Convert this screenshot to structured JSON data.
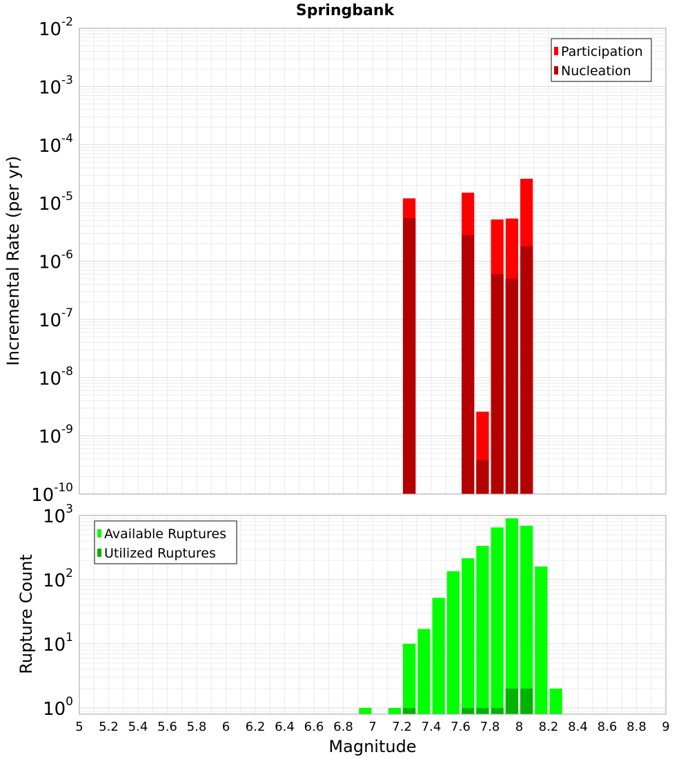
{
  "chart_data": [
    {
      "type": "bar",
      "title": "Springbank",
      "xlabel": "",
      "ylabel": "Incremental Rate (per yr)",
      "yscale": "log",
      "ylim": [
        1e-10,
        0.01
      ],
      "xlim": [
        5,
        9
      ],
      "ytick_base": "10",
      "yticks": [
        {
          "exp": "-2",
          "value": 0.01
        },
        {
          "exp": "-3",
          "value": 0.001
        },
        {
          "exp": "-4",
          "value": 0.0001
        },
        {
          "exp": "-5",
          "value": 1e-05
        },
        {
          "exp": "-6",
          "value": 1e-06
        },
        {
          "exp": "-7",
          "value": 1e-07
        },
        {
          "exp": "-8",
          "value": 1e-08
        },
        {
          "exp": "-9",
          "value": 1e-09
        },
        {
          "exp": "-10",
          "value": 1e-10
        }
      ],
      "legend_position": "top-right",
      "bin_width": 0.1,
      "x": [
        7.25,
        7.65,
        7.75,
        7.85,
        7.95,
        8.05
      ],
      "series": [
        {
          "name": "Participation",
          "color": "#ff0000",
          "values": [
            1.2e-05,
            1.5e-05,
            2.6e-09,
            5.2e-06,
            5.4e-06,
            2.6e-05
          ]
        },
        {
          "name": "Nucleation",
          "color": "#b30000",
          "values": [
            5.5e-06,
            2.8e-06,
            3.8e-10,
            6e-07,
            5e-07,
            1.8e-06
          ]
        }
      ]
    },
    {
      "type": "bar",
      "title": "",
      "xlabel": "Magnitude",
      "ylabel": "Rupture Count",
      "yscale": "log",
      "ylim": [
        0.8,
        1000
      ],
      "xlim": [
        5,
        9
      ],
      "ytick_base": "10",
      "yticks": [
        {
          "exp": "3",
          "value": 1000
        },
        {
          "exp": "2",
          "value": 100
        },
        {
          "exp": "1",
          "value": 10
        },
        {
          "exp": "0",
          "value": 1
        }
      ],
      "xticks": [
        "5",
        "5.2",
        "5.4",
        "5.6",
        "5.8",
        "6",
        "6.2",
        "6.4",
        "6.6",
        "6.8",
        "7",
        "7.2",
        "7.4",
        "7.6",
        "7.8",
        "8",
        "8.2",
        "8.4",
        "8.6",
        "8.8",
        "9"
      ],
      "legend_position": "top-left",
      "bin_width": 0.1,
      "x": [
        6.95,
        7.15,
        7.25,
        7.35,
        7.45,
        7.55,
        7.65,
        7.75,
        7.85,
        7.95,
        8.05,
        8.15,
        8.25
      ],
      "series": [
        {
          "name": "Available Ruptures",
          "color": "#00ff00",
          "values": [
            1,
            1,
            10,
            17,
            52,
            135,
            215,
            335,
            650,
            900,
            690,
            160,
            2
          ]
        },
        {
          "name": "Utilized Ruptures",
          "color": "#00b300",
          "values": [
            0,
            0,
            1,
            0,
            0,
            0,
            1,
            1,
            1,
            2,
            2,
            0,
            0
          ]
        }
      ]
    }
  ]
}
